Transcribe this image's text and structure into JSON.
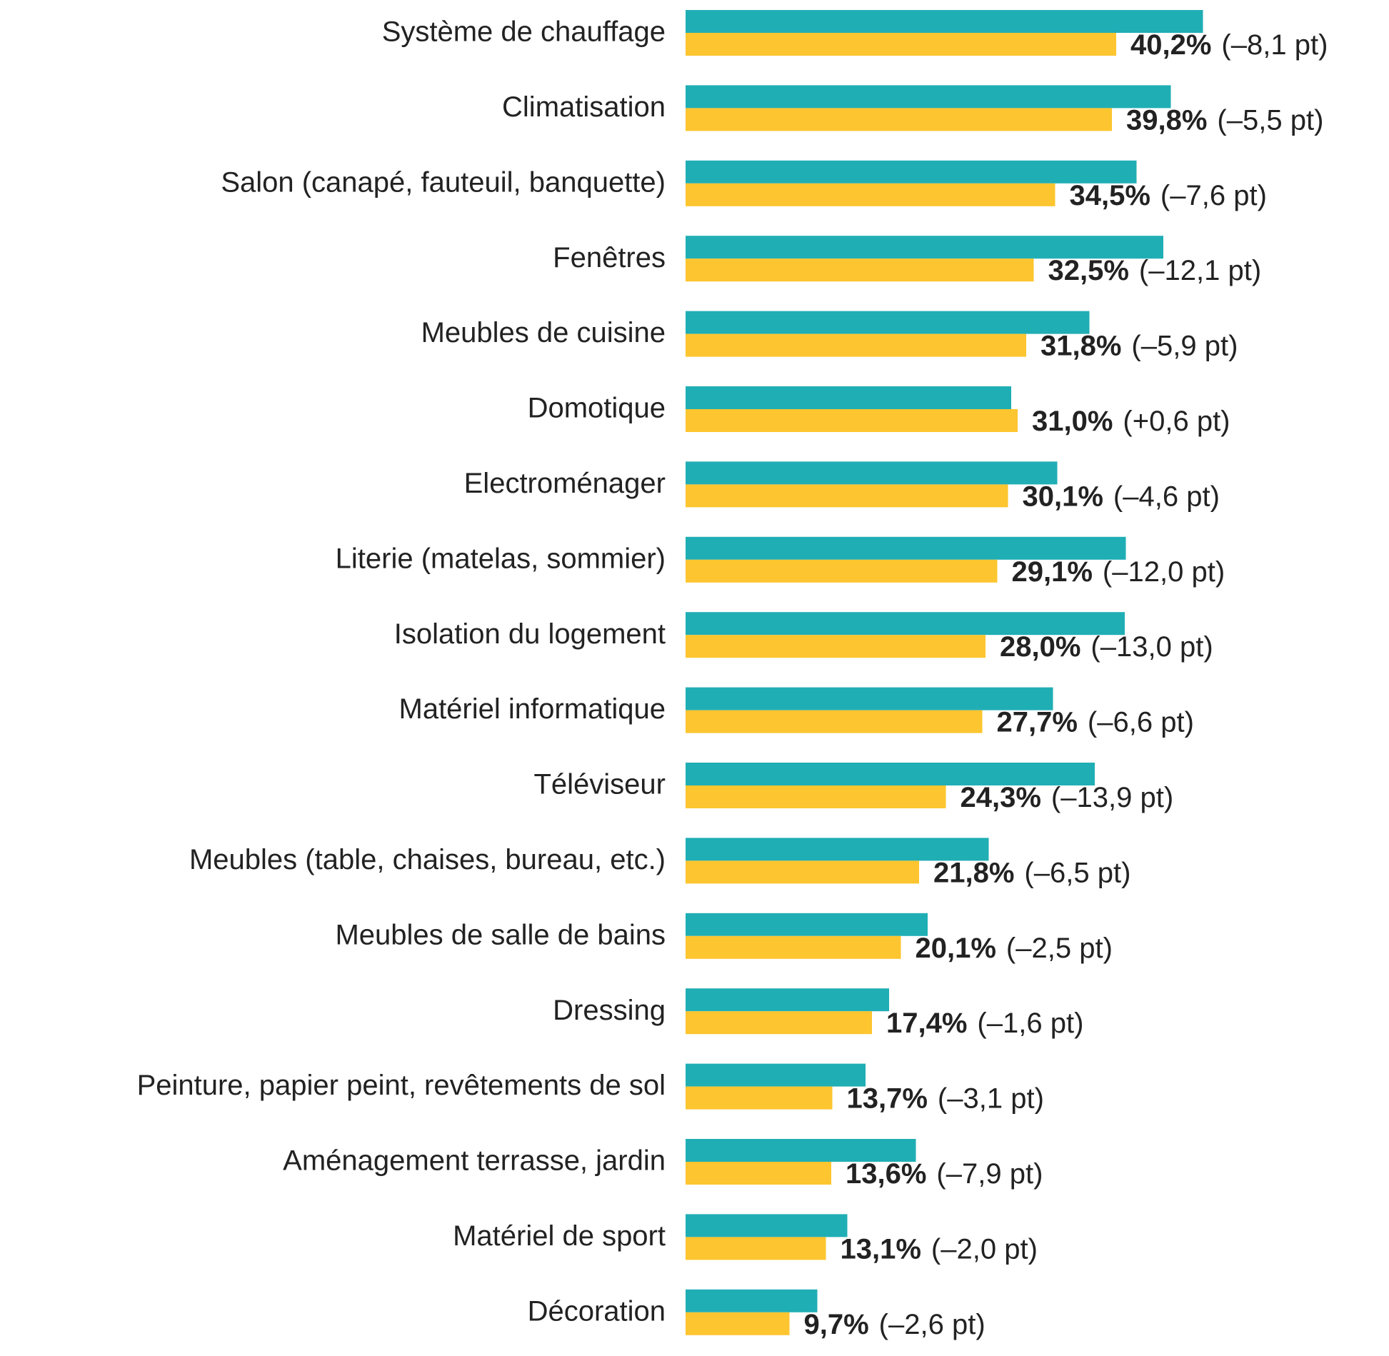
{
  "chart_data": {
    "type": "hbar",
    "categories": [
      "Système de chauffage",
      "Climatisation",
      "Salon (canapé, fauteuil, banquette)",
      "Fenêtres",
      "Meubles de cuisine",
      "Domotique",
      "Electroménager",
      "Literie (matelas, sommier)",
      "Isolation du logement",
      "Matériel informatique",
      "Téléviseur",
      "Meubles (table, chaises, bureau, etc.)",
      "Meubles de salle de bains",
      "Dressing",
      "Peinture, papier peint, revêtements de sol",
      "Aménagement terrasse, jardin",
      "Matériel de sport",
      "Décoration"
    ],
    "series": [
      {
        "color": "#20aeb5",
        "values": [
          48.3,
          45.3,
          42.1,
          44.6,
          37.7,
          30.4,
          34.7,
          41.1,
          41.0,
          34.3,
          38.2,
          28.3,
          22.6,
          19.0,
          16.8,
          21.5,
          15.1,
          12.3
        ]
      },
      {
        "color": "#fdc52f",
        "values": [
          40.2,
          39.8,
          34.5,
          32.5,
          31.8,
          31.0,
          30.1,
          29.1,
          28.0,
          27.7,
          24.3,
          21.8,
          20.1,
          17.4,
          13.7,
          13.6,
          13.1,
          9.7
        ],
        "value_labels": [
          "40,2%",
          "39,8%",
          "34,5%",
          "32,5%",
          "31,8%",
          "31,0%",
          "30,1%",
          "29,1%",
          "28,0%",
          "27,7%",
          "24,3%",
          "21,8%",
          "20,1%",
          "17,4%",
          "13,7%",
          "13,6%",
          "13,1%",
          "9,7%"
        ],
        "change_labels": [
          "(–8,1 pt)",
          "(–5,5 pt)",
          "(–7,6 pt)",
          "(–12,1 pt)",
          "(–5,9 pt)",
          "(+0,6 pt)",
          "(–4,6 pt)",
          "(–12,0 pt)",
          "(–13,0 pt)",
          "(–6,6 pt)",
          "(–13,9 pt)",
          "(–6,5 pt)",
          "(–2,5 pt)",
          "(–1,6 pt)",
          "(–3,1 pt)",
          "(–7,9 pt)",
          "(–2,0 pt)",
          "(–2,6 pt)"
        ]
      }
    ],
    "xlim": [
      0,
      65
    ]
  }
}
